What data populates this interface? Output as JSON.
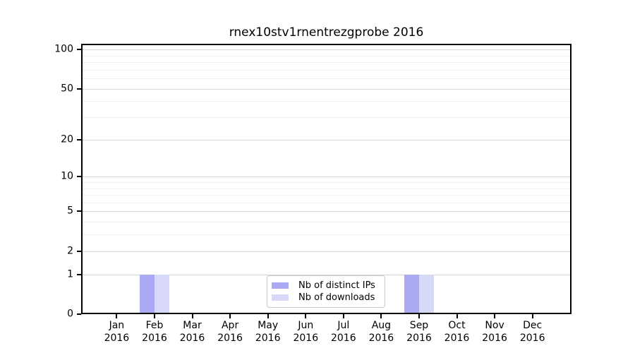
{
  "chart_data": {
    "type": "bar",
    "title": "rnex10stv1rnentrezgprobe 2016",
    "x_categories": [
      {
        "month": "Jan",
        "year": "2016"
      },
      {
        "month": "Feb",
        "year": "2016"
      },
      {
        "month": "Mar",
        "year": "2016"
      },
      {
        "month": "Apr",
        "year": "2016"
      },
      {
        "month": "May",
        "year": "2016"
      },
      {
        "month": "Jun",
        "year": "2016"
      },
      {
        "month": "Jul",
        "year": "2016"
      },
      {
        "month": "Aug",
        "year": "2016"
      },
      {
        "month": "Sep",
        "year": "2016"
      },
      {
        "month": "Oct",
        "year": "2016"
      },
      {
        "month": "Nov",
        "year": "2016"
      },
      {
        "month": "Dec",
        "year": "2016"
      }
    ],
    "series": [
      {
        "name": "Nb of distinct IPs",
        "color": "#aaaaf3",
        "values": [
          0,
          1,
          0,
          0,
          0,
          0,
          0,
          0,
          1,
          0,
          0,
          0
        ]
      },
      {
        "name": "Nb of downloads",
        "color": "#d8d8f8",
        "values": [
          0,
          1,
          0,
          0,
          0,
          0,
          0,
          0,
          1,
          0,
          0,
          0
        ]
      }
    ],
    "y_scale": "log1p",
    "y_ticks": [
      0,
      1,
      2,
      5,
      10,
      20,
      50,
      100
    ],
    "y_minor_gridlines": [
      3,
      4,
      6,
      7,
      8,
      9,
      30,
      40,
      60,
      70,
      80,
      90
    ],
    "ylim": [
      0,
      110
    ],
    "xlabel": "",
    "ylabel": "",
    "legend_position": "lower center",
    "grid": true,
    "colors": {
      "major_grid": "#d4d4d4",
      "minor_grid": "#efefef",
      "axis": "#000000",
      "background": "#ffffff"
    }
  }
}
